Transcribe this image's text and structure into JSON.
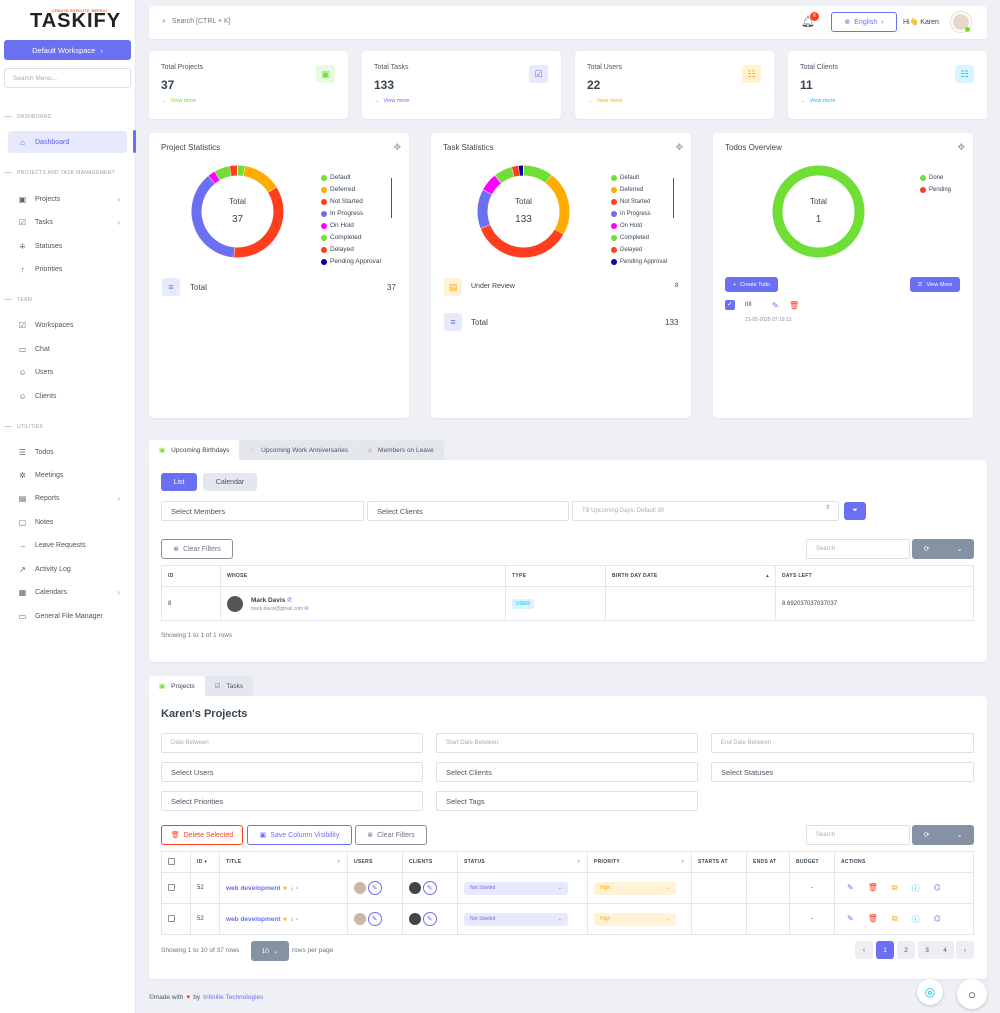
{
  "sidebar": {
    "logo": "TASKIFY",
    "tagline": "CREATE. EXECUTE. REPEAT.",
    "workspace_btn": "Default Workspace",
    "search_placeholder": "Search Menu...",
    "sec_dashboard": "DASHBOARD",
    "sec_projects": "PROJECTS AND TASK MANAGEMENT",
    "sec_team": "TEAM",
    "sec_utilities": "UTILITIES",
    "items": {
      "dashboard": "Dashboard",
      "projects": "Projects",
      "tasks": "Tasks",
      "statuses": "Statuses",
      "priorities": "Priorities",
      "workspaces": "Workspaces",
      "chat": "Chat",
      "users": "Users",
      "clients": "Clients",
      "todos": "Todos",
      "meetings": "Meetings",
      "reports": "Reports",
      "notes": "Notes",
      "leave": "Leave Requests",
      "activity": "Activity Log",
      "calendars": "Calendars",
      "file_manager": "General File Manager"
    }
  },
  "topbar": {
    "search": "Search [CTRL + K]",
    "notif_count": "6",
    "language": "English",
    "greeting": "Hi👋 Karen"
  },
  "stats": [
    {
      "title": "Total Projects",
      "value": "37",
      "link": "View more",
      "color": "#71dd37"
    },
    {
      "title": "Total Tasks",
      "value": "133",
      "link": "View more",
      "color": "#6b6ff2"
    },
    {
      "title": "Total Users",
      "value": "22",
      "link": "View more",
      "color": "#ffab00"
    },
    {
      "title": "Total Clients",
      "value": "11",
      "link": "View more",
      "color": "#03c3ec"
    }
  ],
  "project_stats": {
    "title": "Project Statistics",
    "center_label": "Total",
    "center_value": "37",
    "total_label": "Total",
    "total_value": "37",
    "legend": [
      "Default",
      "Deferred",
      "Not Started",
      "In Progress",
      "On Hold",
      "Completed",
      "Delayed",
      "Pending Approval"
    ]
  },
  "task_stats": {
    "title": "Task Statistics",
    "center_label": "Total",
    "center_value": "133",
    "legend": [
      "Default",
      "Deferred",
      "Not Started",
      "In Progress",
      "On Hold",
      "Completed",
      "Delayed",
      "Pending Approval"
    ],
    "review_label": "Under Review",
    "review_value": "8",
    "total_label": "Total",
    "total_value": "133"
  },
  "todos": {
    "title": "Todos Overview",
    "center_label": "Total",
    "center_value": "1",
    "legend": [
      "Done",
      "Pending"
    ],
    "create_btn": "Create Todo",
    "view_btn": "View More",
    "item_title": "IIII",
    "item_date": "21-05-2025 07:19:13"
  },
  "chart_data": [
    {
      "type": "pie",
      "title": "Project Statistics",
      "categories": [
        "Default",
        "Deferred",
        "Not Started",
        "In Progress",
        "On Hold",
        "Completed",
        "Delayed",
        "Pending Approval"
      ],
      "values": [
        1,
        5,
        13,
        14,
        1,
        2,
        1,
        0
      ],
      "colors": [
        "#71dd37",
        "#ffab00",
        "#ff3e1d",
        "#6b6ff2",
        "#ff00ff",
        "#71dd37",
        "#ff3e1d",
        "#0000aa"
      ]
    },
    {
      "type": "pie",
      "title": "Task Statistics",
      "categories": [
        "Default",
        "Deferred",
        "Not Started",
        "In Progress",
        "On Hold",
        "Completed",
        "Delayed",
        "Pending Approval"
      ],
      "values": [
        13,
        28,
        44,
        17,
        8,
        8,
        3,
        2
      ],
      "colors": [
        "#71dd37",
        "#ffab00",
        "#ff3e1d",
        "#6b6ff2",
        "#ff00ff",
        "#71dd37",
        "#ff3e1d",
        "#0000aa"
      ]
    },
    {
      "type": "pie",
      "title": "Todos Overview",
      "categories": [
        "Done",
        "Pending"
      ],
      "values": [
        1,
        0
      ],
      "colors": [
        "#71dd37",
        "#ff3e1d"
      ]
    }
  ],
  "birthday_section": {
    "tabs": [
      "Upcoming Birthdays",
      "Upcoming Work Anniversaries",
      "Members on Leave"
    ],
    "btn_list": "List",
    "btn_calendar": "Calendar",
    "select_members": "Select Members",
    "select_clients": "Select Clients",
    "days_placeholder": "Till Upcoming Days. Default 30",
    "clear_filters": "Clear Filters",
    "search_placeholder": "Search",
    "headers": [
      "ID",
      "WHOSE",
      "TYPE",
      "BIRTH DAY DATE",
      "DAYS LEFT"
    ],
    "row": {
      "id": "8",
      "name": "Mark Davis",
      "email": "mark.davis@gmail.com",
      "type": "USER",
      "birthday": "",
      "days_left": "8.692037037037037"
    },
    "footer": "Showing 1 to 1 of 1 rows"
  },
  "projects_section": {
    "tabs": [
      "Projects",
      "Tasks"
    ],
    "title": "Karen's Projects",
    "date_between": "Date Between",
    "start_between": "Start Date Between",
    "end_between": "End Date Between",
    "select_users": "Select Users",
    "select_clients": "Select Clients",
    "select_statuses": "Select Statuses",
    "select_priorities": "Select Priorities",
    "select_tags": "Select Tags",
    "delete_btn": "Delete Selected",
    "save_btn": "Save Column Visibility",
    "clear_btn": "Clear Filters",
    "search_placeholder": "Search",
    "headers": [
      "ID",
      "TITLE",
      "USERS",
      "CLIENTS",
      "STATUS",
      "PRIORITY",
      "STARTS AT",
      "ENDS AT",
      "BUDGET",
      "ACTIONS"
    ],
    "rows": [
      {
        "id": "52",
        "title": "web development",
        "status": "Not Started",
        "priority": "High",
        "budget": "-"
      },
      {
        "id": "52",
        "title": "web development",
        "status": "Not Started",
        "priority": "High",
        "budget": "-"
      }
    ],
    "footer_left": "Showing 1 to 10 of 37 rows",
    "page_size": "10",
    "footer_right": "rows per page",
    "pages": [
      "‹",
      "1",
      "2",
      "3",
      "4",
      "›"
    ]
  },
  "footer": {
    "made_with": "©made with",
    "by": "by",
    "company": "Infinitie Technologies"
  }
}
